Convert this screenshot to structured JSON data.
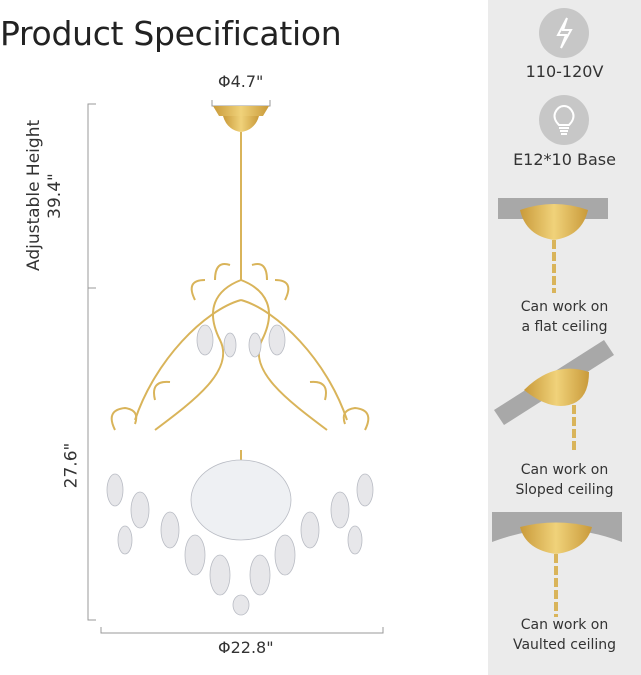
{
  "title": "Product Specification",
  "dimensions": {
    "canopy": "Φ4.7\"",
    "adjustable_label": "Adjustable Height",
    "adjustable_value": "39.4\"",
    "body_height": "27.6\"",
    "width": "Φ22.8\""
  },
  "specs": [
    {
      "icon": "lightning-icon",
      "label": "110-120V"
    },
    {
      "icon": "bulb-icon",
      "label": "E12*10 Base"
    }
  ],
  "ceilings": [
    {
      "line1": "Can work on",
      "line2": "a flat ceiling"
    },
    {
      "line1": "Can work on",
      "line2": "Sloped ceiling"
    },
    {
      "line1": "Can work on",
      "line2": "Vaulted ceiling"
    }
  ],
  "colors": {
    "gold": "#d9b45a",
    "panel": "#ebebeb",
    "icon_circle": "#c7c7c7"
  }
}
